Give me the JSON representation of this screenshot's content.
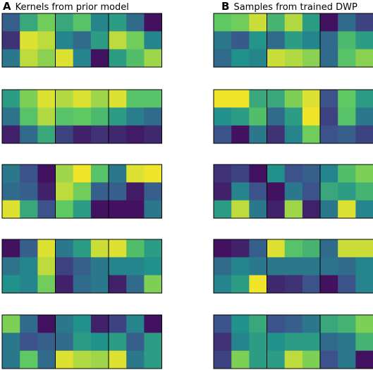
{
  "panels": {
    "a": {
      "letter": "A",
      "title": "Kernels from prior model"
    },
    "b": {
      "letter": "B",
      "title": "Samples from trained DWP"
    }
  },
  "colormap": {
    "name": "viridis",
    "range": [
      0,
      1
    ],
    "stops": [
      "#440154",
      "#3b528b",
      "#21918c",
      "#5ec962",
      "#fde725"
    ]
  },
  "chart_data": [
    {
      "type": "heatmap",
      "panel": "A",
      "title": "Kernels from prior model",
      "kernel_size": [
        3,
        3
      ],
      "kernels_per_row": 3,
      "rows": [
        [
          [
            [
              0.3,
              0.6,
              0.78
            ],
            [
              0.15,
              0.95,
              0.9
            ],
            [
              0.4,
              0.9,
              0.82
            ]
          ],
          [
            [
              0.6,
              0.72,
              0.45
            ],
            [
              0.45,
              0.35,
              0.55
            ],
            [
              0.95,
              0.45,
              0.05
            ]
          ],
          [
            [
              0.55,
              0.35,
              0.05
            ],
            [
              0.9,
              0.78,
              0.45
            ],
            [
              0.55,
              0.7,
              0.85
            ]
          ]
        ],
        [
          [
            [
              0.55,
              0.8,
              0.95
            ],
            [
              0.38,
              0.72,
              0.88
            ],
            [
              0.1,
              0.35,
              0.6
            ]
          ],
          [
            [
              0.88,
              0.95,
              0.85
            ],
            [
              0.72,
              0.75,
              0.68
            ],
            [
              0.2,
              0.1,
              0.15
            ]
          ],
          [
            [
              0.95,
              0.72,
              0.72
            ],
            [
              0.55,
              0.42,
              0.35
            ],
            [
              0.12,
              0.08,
              0.12
            ]
          ]
        ],
        [
          [
            [
              0.4,
              0.25,
              0.05
            ],
            [
              0.35,
              0.3,
              0.1
            ],
            [
              0.95,
              0.6,
              0.25
            ]
          ],
          [
            [
              0.85,
              0.98,
              0.72
            ],
            [
              0.9,
              0.78,
              0.3
            ],
            [
              0.75,
              0.55,
              0.05
            ]
          ],
          [
            [
              0.4,
              0.95,
              0.98
            ],
            [
              0.3,
              0.08,
              0.3
            ],
            [
              0.05,
              0.05,
              0.4
            ]
          ]
        ],
        [
          [
            [
              0.05,
              0.3,
              0.95
            ],
            [
              0.38,
              0.45,
              0.9
            ],
            [
              0.5,
              0.45,
              0.78
            ]
          ],
          [
            [
              0.4,
              0.55,
              0.92
            ],
            [
              0.2,
              0.3,
              0.4
            ],
            [
              0.1,
              0.35,
              0.4
            ]
          ],
          [
            [
              0.95,
              0.7,
              0.55
            ],
            [
              0.45,
              0.45,
              0.5
            ],
            [
              0.1,
              0.35,
              0.8
            ]
          ]
        ],
        [
          [
            [
              0.8,
              0.35,
              0.05
            ],
            [
              0.4,
              0.25,
              0.3
            ],
            [
              0.4,
              0.75,
              0.35
            ]
          ],
          [
            [
              0.4,
              0.5,
              0.1
            ],
            [
              0.35,
              0.55,
              0.5
            ],
            [
              0.95,
              0.88,
              0.85
            ]
          ],
          [
            [
              0.2,
              0.45,
              0.05
            ],
            [
              0.55,
              0.3,
              0.55
            ],
            [
              0.95,
              0.4,
              0.55
            ]
          ]
        ]
      ]
    },
    {
      "type": "heatmap",
      "panel": "B",
      "title": "Samples from trained DWP",
      "kernel_size": [
        3,
        3
      ],
      "kernels_per_row": 3,
      "rows": [
        [
          [
            [
              0.75,
              0.78,
              0.92
            ],
            [
              0.4,
              0.28,
              0.52
            ],
            [
              0.35,
              0.5,
              0.45
            ]
          ],
          [
            [
              0.65,
              0.88,
              0.55
            ],
            [
              0.35,
              0.55,
              0.45
            ],
            [
              0.92,
              0.88,
              0.82
            ]
          ],
          [
            [
              0.05,
              0.35,
              0.2
            ],
            [
              0.35,
              0.68,
              0.55
            ],
            [
              0.35,
              0.72,
              0.82
            ]
          ]
        ],
        [
          [
            [
              0.98,
              0.98,
              0.6
            ],
            [
              0.5,
              0.55,
              0.7
            ],
            [
              0.25,
              0.05,
              0.4
            ]
          ],
          [
            [
              0.6,
              0.8,
              0.95
            ],
            [
              0.35,
              0.55,
              0.98
            ],
            [
              0.15,
              0.45,
              0.78
            ]
          ],
          [
            [
              0.25,
              0.75,
              0.55
            ],
            [
              0.2,
              0.72,
              0.4
            ],
            [
              0.25,
              0.3,
              0.2
            ]
          ]
        ],
        [
          [
            [
              0.15,
              0.2,
              0.05
            ],
            [
              0.1,
              0.45,
              0.25
            ],
            [
              0.55,
              0.9,
              0.4
            ]
          ],
          [
            [
              0.5,
              0.25,
              0.3
            ],
            [
              0.05,
              0.4,
              0.25
            ],
            [
              0.1,
              0.85,
              0.1
            ]
          ],
          [
            [
              0.45,
              0.7,
              0.8
            ],
            [
              0.6,
              0.55,
              0.65
            ],
            [
              0.4,
              0.95,
              0.45
            ]
          ]
        ],
        [
          [
            [
              0.05,
              0.1,
              0.3
            ],
            [
              0.35,
              0.45,
              0.4
            ],
            [
              0.45,
              0.55,
              0.98
            ]
          ],
          [
            [
              0.95,
              0.72,
              0.65
            ],
            [
              0.4,
              0.4,
              0.4
            ],
            [
              0.12,
              0.15,
              0.25
            ]
          ],
          [
            [
              0.35,
              0.92,
              0.92
            ],
            [
              0.38,
              0.35,
              0.45
            ],
            [
              0.05,
              0.25,
              0.45
            ]
          ]
        ],
        [
          [
            [
              0.25,
              0.5,
              0.6
            ],
            [
              0.15,
              0.45,
              0.55
            ],
            [
              0.2,
              0.8,
              0.55
            ]
          ],
          [
            [
              0.25,
              0.3,
              0.4
            ],
            [
              0.5,
              0.55,
              0.55
            ],
            [
              0.55,
              0.9,
              0.8
            ]
          ],
          [
            [
              0.6,
              0.65,
              0.8
            ],
            [
              0.35,
              0.4,
              0.65
            ],
            [
              0.25,
              0.4,
              0.05
            ]
          ]
        ]
      ]
    }
  ]
}
